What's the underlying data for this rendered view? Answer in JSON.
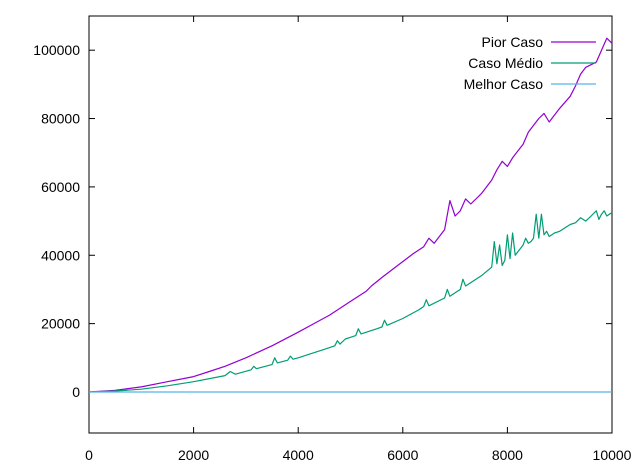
{
  "chart_data": {
    "type": "line",
    "title": "",
    "xlabel": "",
    "ylabel": "",
    "xlim": [
      0,
      10000
    ],
    "ylim": [
      -12000,
      110000
    ],
    "x_ticks": [
      0,
      2000,
      4000,
      6000,
      8000,
      10000
    ],
    "y_ticks": [
      0,
      20000,
      40000,
      60000,
      80000,
      100000
    ],
    "x_tick_labels": [
      "0",
      "2000",
      "4000",
      "6000",
      "8000",
      "10000"
    ],
    "y_tick_labels": [
      "0",
      "20000",
      "40000",
      "60000",
      "80000",
      "100000"
    ],
    "grid": false,
    "legend_position": "top-right",
    "series": [
      {
        "name": "Pior Caso",
        "color": "#9400d3",
        "x": [
          0,
          500,
          1000,
          1500,
          2000,
          2300,
          2600,
          3000,
          3500,
          4000,
          4300,
          4600,
          5000,
          5300,
          5400,
          5600,
          5900,
          6200,
          6400,
          6500,
          6600,
          6800,
          6900,
          7000,
          7100,
          7200,
          7300,
          7500,
          7700,
          7800,
          7900,
          8000,
          8100,
          8300,
          8400,
          8500,
          8600,
          8700,
          8800,
          9000,
          9200,
          9300,
          9400,
          9500,
          9700,
          9800,
          9900,
          10000
        ],
        "y": [
          0,
          500,
          1500,
          3000,
          4500,
          6000,
          7500,
          10000,
          13500,
          17500,
          20000,
          22500,
          26500,
          29500,
          31000,
          33500,
          37000,
          40500,
          42500,
          45000,
          43500,
          47500,
          56000,
          51500,
          53000,
          56500,
          55000,
          58000,
          62000,
          65000,
          67500,
          66000,
          68500,
          72500,
          76000,
          78000,
          80000,
          81500,
          79000,
          83000,
          86500,
          89500,
          93000,
          95000,
          96500,
          100000,
          103500,
          102000
        ]
      },
      {
        "name": "Caso Médio",
        "color": "#009e73",
        "x": [
          0,
          500,
          1000,
          1500,
          2000,
          2600,
          2700,
          2800,
          3100,
          3150,
          3200,
          3500,
          3550,
          3600,
          3800,
          3850,
          3900,
          4000,
          4500,
          4700,
          4750,
          4800,
          4900,
          5000,
          5100,
          5150,
          5200,
          5500,
          5600,
          5650,
          5700,
          6000,
          6300,
          6400,
          6450,
          6500,
          6800,
          6850,
          6900,
          7100,
          7150,
          7200,
          7500,
          7700,
          7750,
          7800,
          7850,
          7900,
          7950,
          8000,
          8050,
          8100,
          8150,
          8200,
          8250,
          8300,
          8350,
          8400,
          8450,
          8500,
          8550,
          8600,
          8650,
          8700,
          8750,
          8800,
          8900,
          9000,
          9100,
          9200,
          9300,
          9400,
          9500,
          9600,
          9700,
          9750,
          9800,
          9850,
          9900,
          10000
        ],
        "y": [
          0,
          300,
          800,
          1800,
          3000,
          4800,
          6000,
          5200,
          6500,
          7500,
          6800,
          8000,
          10000,
          8500,
          9300,
          10500,
          9600,
          10000,
          12500,
          13500,
          15000,
          14000,
          15500,
          16000,
          16500,
          18500,
          17000,
          18500,
          19000,
          21000,
          19500,
          21500,
          24000,
          25000,
          27000,
          25200,
          27500,
          30000,
          28000,
          30000,
          33000,
          31000,
          34000,
          36500,
          44000,
          37500,
          43000,
          37000,
          38500,
          46000,
          39000,
          46500,
          40000,
          41000,
          42000,
          43000,
          45000,
          43500,
          44000,
          45000,
          52000,
          45000,
          52000,
          46000,
          47000,
          45500,
          46500,
          47000,
          48000,
          49000,
          49500,
          51000,
          50000,
          51500,
          53000,
          50500,
          52000,
          53000,
          51500,
          52500
        ]
      },
      {
        "name": "Melhor Caso",
        "color": "#56b4e9",
        "x": [
          0,
          10000
        ],
        "y": [
          0,
          0
        ]
      }
    ]
  }
}
